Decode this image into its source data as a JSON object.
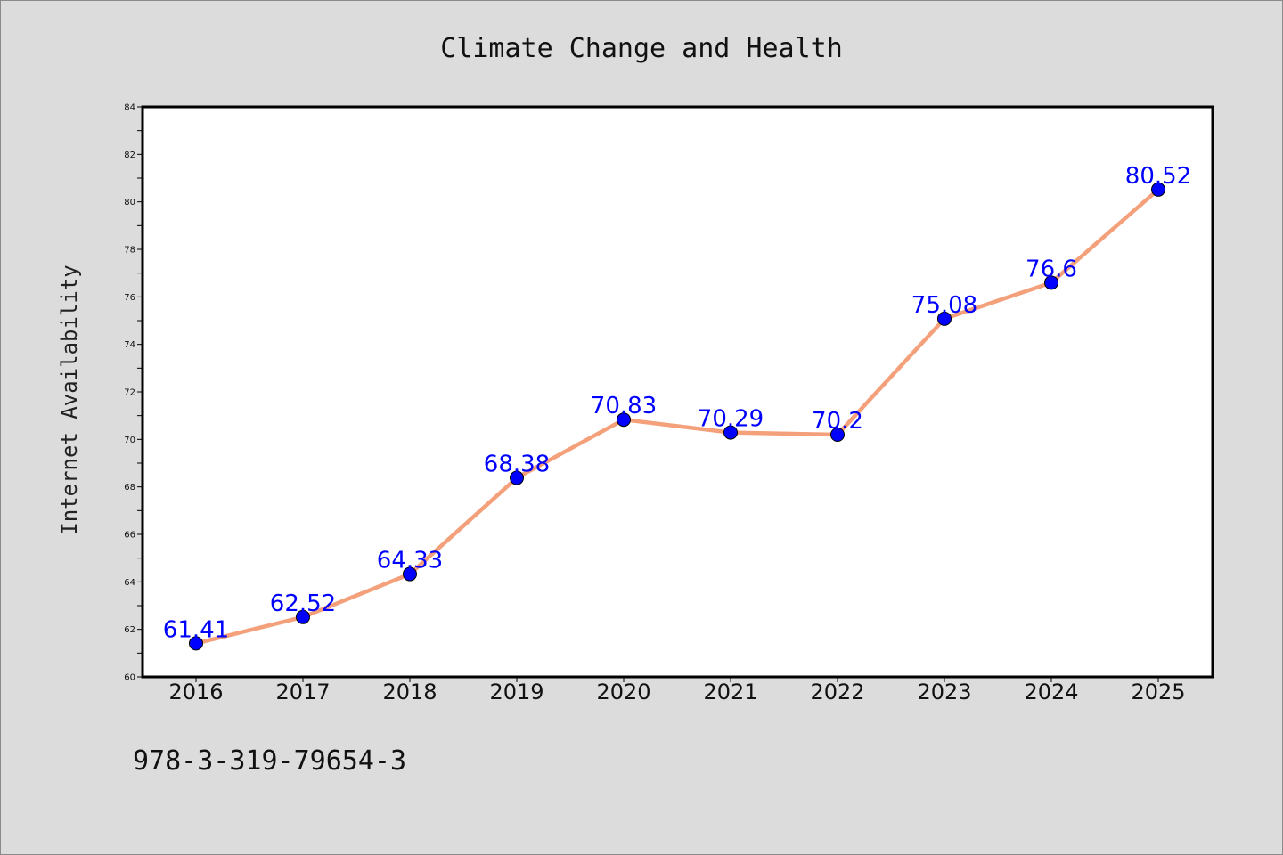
{
  "chart_data": {
    "type": "line",
    "title": "Climate Change and Health",
    "xlabel": "",
    "ylabel": "Internet Availability",
    "categories": [
      "2016",
      "2017",
      "2018",
      "2019",
      "2020",
      "2021",
      "2022",
      "2023",
      "2024",
      "2025"
    ],
    "series": [
      {
        "values": [
          61.41,
          62.52,
          64.33,
          68.38,
          70.83,
          70.29,
          70.2,
          75.08,
          76.6,
          80.52
        ],
        "line_color": "#f4a07a",
        "marker_color": "#0000ff"
      }
    ],
    "data_labels": [
      "61.41",
      "62.52",
      "64.33",
      "68.38",
      "70.83",
      "70.29",
      "70.2",
      "75.08",
      "76.6",
      "80.52"
    ],
    "ylim": [
      60,
      84
    ],
    "yticks": [
      60,
      62,
      64,
      66,
      68,
      70,
      72,
      74,
      76,
      78,
      80,
      82,
      84
    ],
    "grid": false,
    "data_label_color": "#0000ff"
  },
  "footer": {
    "text": "978-3-319-79654-3"
  }
}
